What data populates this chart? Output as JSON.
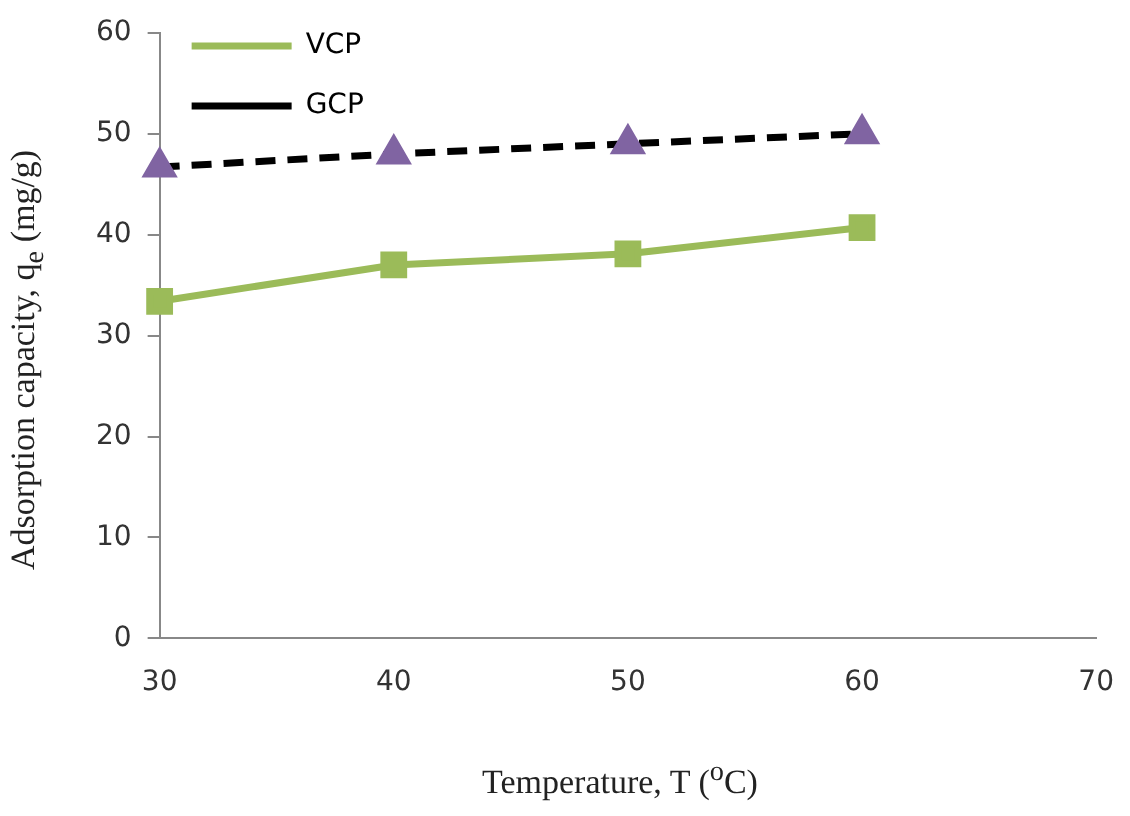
{
  "chart_data": {
    "type": "line",
    "xlabel": "Temperature, T ($^{o}$C)",
    "ylabel": "Adsorption capacity, q$_{e}$ (mg/g)",
    "x": [
      30,
      40,
      50,
      60
    ],
    "xlim": [
      30,
      70
    ],
    "xticks": [
      30,
      40,
      50,
      60,
      70
    ],
    "ylim": [
      0,
      60
    ],
    "yticks": [
      0,
      10,
      20,
      30,
      40,
      50,
      60
    ],
    "grid": false,
    "legend": "top left",
    "series": [
      {
        "name": "VCP",
        "color": "#9bbb59",
        "values": [
          33.4,
          37.0,
          38.1,
          40.7
        ],
        "marker": "square",
        "line_style": "solid"
      },
      {
        "name": "GCP",
        "color": "#000000",
        "colors": [
          "#8064a2",
          "#8064a2",
          "#8064a2",
          "#8064a2"
        ],
        "values": [
          46.7,
          48.0,
          49.0,
          50.0
        ],
        "marker": "triangle",
        "line_style": "dashed"
      }
    ]
  }
}
